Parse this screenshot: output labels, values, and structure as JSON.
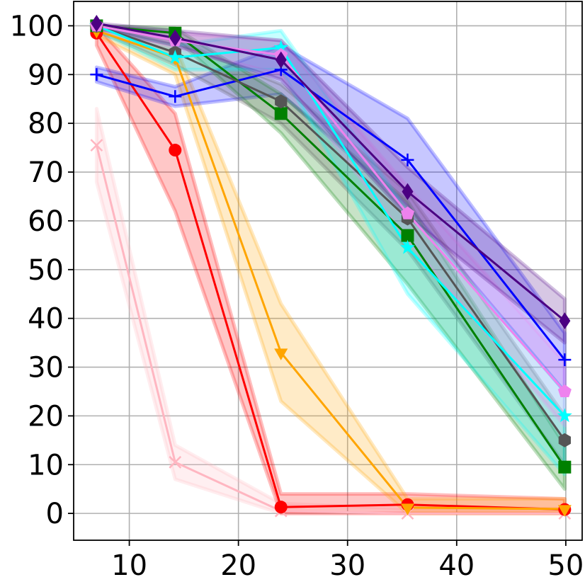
{
  "chart_data": {
    "type": "line",
    "title": "",
    "xlabel": "",
    "ylabel": "",
    "xlim": [
      4.9,
      51.5
    ],
    "ylim": [
      -5.5,
      105
    ],
    "x_ticks": [
      10,
      20,
      30,
      40,
      50
    ],
    "y_ticks": [
      0,
      10,
      20,
      30,
      40,
      50,
      60,
      70,
      80,
      90,
      100
    ],
    "x_tick_labels": [
      "10",
      "20",
      "30",
      "40",
      "50"
    ],
    "y_tick_labels": [
      "0",
      "10",
      "20",
      "30",
      "40",
      "50",
      "60",
      "70",
      "80",
      "90",
      "100"
    ],
    "grid": true,
    "x": [
      7,
      14.2,
      23.9,
      35.5,
      49.9
    ],
    "series": [
      {
        "name": "pink-x",
        "color": "#ffb6c1",
        "marker": "x",
        "values": [
          75.5,
          10.5,
          0.5,
          0,
          0
        ],
        "band": [
          [
            83,
            68
          ],
          [
            14,
            7
          ],
          [
            2,
            0
          ],
          [
            1,
            0
          ],
          [
            1,
            0
          ]
        ]
      },
      {
        "name": "red-circle",
        "color": "#ff0000",
        "marker": "circle",
        "values": [
          98.5,
          74.5,
          1.3,
          1.8,
          0.8
        ],
        "band": [
          [
            100,
            96
          ],
          [
            82,
            62
          ],
          [
            4,
            0
          ],
          [
            4,
            0
          ],
          [
            3,
            0
          ]
        ]
      },
      {
        "name": "orange-triangle",
        "color": "#ffa500",
        "marker": "triangle-down",
        "values": [
          99,
          93.5,
          33,
          1.2,
          0.9
        ],
        "band": [
          [
            100,
            98
          ],
          [
            96,
            90
          ],
          [
            43,
            23
          ],
          [
            3,
            0
          ],
          [
            3,
            0
          ]
        ]
      },
      {
        "name": "blue-plus",
        "color": "#0000ff",
        "marker": "plus",
        "values": [
          90,
          85.5,
          91,
          72.5,
          31.5
        ],
        "band": [
          [
            91.5,
            88.5
          ],
          [
            87.5,
            83.5
          ],
          [
            96,
            86
          ],
          [
            81,
            63
          ],
          [
            37,
            25
          ]
        ]
      },
      {
        "name": "green-square",
        "color": "#008000",
        "marker": "square",
        "values": [
          100,
          98.5,
          82,
          57,
          9.5
        ],
        "band": [
          [
            100,
            99.5
          ],
          [
            99.5,
            97.5
          ],
          [
            86,
            78
          ],
          [
            64,
            47
          ],
          [
            14,
            5
          ]
        ]
      },
      {
        "name": "gray-hexagon",
        "color": "#555555",
        "marker": "hexagon",
        "values": [
          100,
          94.5,
          84.5,
          60.5,
          15
        ],
        "band": [
          [
            100,
            99
          ],
          [
            97,
            92
          ],
          [
            88,
            80
          ],
          [
            66,
            54
          ],
          [
            20,
            10
          ]
        ]
      },
      {
        "name": "cyan-star",
        "color": "#00ffff",
        "marker": "star",
        "values": [
          100,
          93.5,
          95.5,
          54.5,
          20
        ],
        "band": [
          [
            100,
            99
          ],
          [
            96,
            91
          ],
          [
            99,
            91
          ],
          [
            62,
            45
          ],
          [
            25,
            8
          ]
        ]
      },
      {
        "name": "violet-pentagon",
        "color": "#ee82ee",
        "marker": "pentagon",
        "values": [
          100,
          97,
          94,
          61.5,
          25
        ],
        "band": [
          [
            100,
            99
          ],
          [
            98.5,
            95.5
          ],
          [
            97,
            90
          ],
          [
            67,
            56
          ],
          [
            31,
            18
          ]
        ]
      },
      {
        "name": "indigo-diamond",
        "color": "#4b0082",
        "marker": "diamond",
        "values": [
          100.5,
          97.5,
          93,
          66,
          39.5
        ],
        "band": [
          [
            100.5,
            99.5
          ],
          [
            99,
            96
          ],
          [
            97,
            89
          ],
          [
            71,
            61
          ],
          [
            44,
            35
          ]
        ]
      }
    ]
  }
}
